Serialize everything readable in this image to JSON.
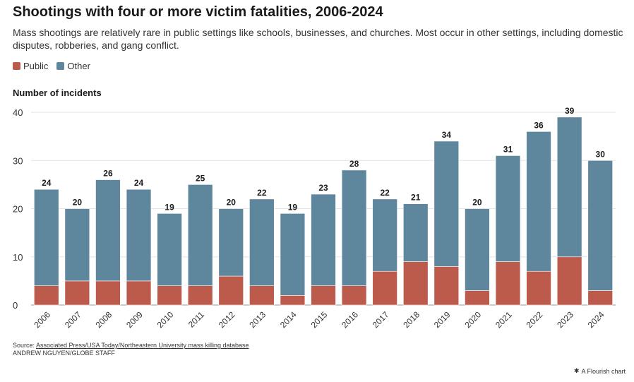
{
  "title": "Shootings with four or more victim fatalities, 2006-2024",
  "subtitle": "Mass shootings are relatively rare in public settings like schools, businesses, and churches. Most occur in other settings, including domestic disputes, robberies, and gang conflict.",
  "legend": [
    {
      "label": "Public",
      "color": "#bc5a4c"
    },
    {
      "label": "Other",
      "color": "#5e869c"
    }
  ],
  "footer": {
    "source_prefix": "Source: ",
    "source_link": "Associated Press/USA Today/Northeastern University mass killing database",
    "credit": "ANDREW NGUYEN/GLOBE STAFF",
    "flourish": "A Flourish chart"
  },
  "chart_data": {
    "type": "bar",
    "stacked": true,
    "ylabel": "Number of incidents",
    "ylim": [
      0,
      40
    ],
    "yticks": [
      0,
      10,
      20,
      30,
      40
    ],
    "grid": true,
    "legend_position": "top-left",
    "categories": [
      "2006",
      "2007",
      "2008",
      "2009",
      "2010",
      "2011",
      "2012",
      "2013",
      "2014",
      "2015",
      "2016",
      "2017",
      "2018",
      "2019",
      "2020",
      "2021",
      "2022",
      "2023",
      "2024"
    ],
    "series": [
      {
        "name": "Public",
        "color": "#bc5a4c",
        "values": [
          4,
          5,
          5,
          5,
          4,
          4,
          6,
          4,
          2,
          4,
          4,
          7,
          9,
          8,
          3,
          9,
          7,
          10,
          3
        ]
      },
      {
        "name": "Other",
        "color": "#5e869c",
        "values": [
          20,
          15,
          21,
          19,
          15,
          21,
          14,
          18,
          17,
          19,
          24,
          15,
          12,
          26,
          17,
          22,
          29,
          29,
          27
        ]
      }
    ],
    "totals": [
      24,
      20,
      26,
      24,
      19,
      25,
      20,
      22,
      19,
      23,
      28,
      22,
      21,
      34,
      20,
      31,
      36,
      39,
      30
    ]
  }
}
